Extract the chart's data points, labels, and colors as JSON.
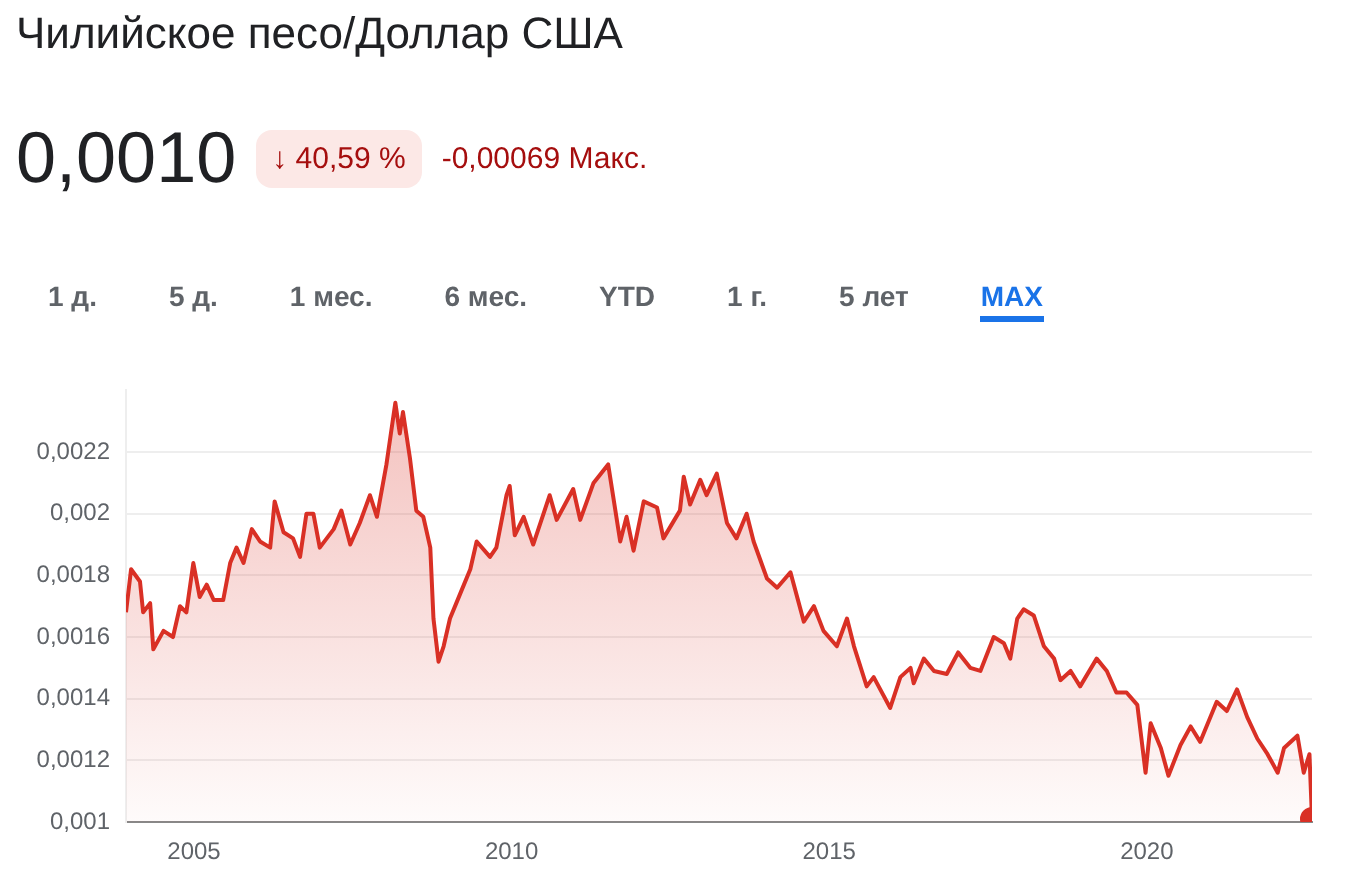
{
  "chart_data": {
    "type": "area",
    "title": "Чилийское песо/Доллар США",
    "annotations": [
      "0,0010",
      "↓ 40,59 %",
      "-0,00069 Макс.",
      "1 д.",
      "5 д.",
      "1 мес.",
      "6 мес.",
      "YTD",
      "1 г.",
      "5 лет",
      "MAX"
    ],
    "x": [
      2003.93,
      2004.01,
      2004.15,
      2004.2,
      2004.31,
      2004.36,
      2004.52,
      2004.67,
      2004.78,
      2004.88,
      2004.99,
      2005.09,
      2005.2,
      2005.31,
      2005.46,
      2005.57,
      2005.67,
      2005.78,
      2005.91,
      2006.04,
      2006.2,
      2006.27,
      2006.41,
      2006.56,
      2006.67,
      2006.77,
      2006.88,
      2006.98,
      2007.2,
      2007.32,
      2007.46,
      2007.61,
      2007.77,
      2007.88,
      2008.03,
      2008.17,
      2008.24,
      2008.29,
      2008.4,
      2008.5,
      2008.61,
      2008.72,
      2008.77,
      2008.85,
      2008.93,
      2009.03,
      2009.19,
      2009.35,
      2009.45,
      2009.66,
      2009.76,
      2009.92,
      2009.97,
      2010.05,
      2010.19,
      2010.34,
      2010.6,
      2010.71,
      2010.97,
      2011.08,
      2011.29,
      2011.52,
      2011.71,
      2011.81,
      2011.92,
      2012.08,
      2012.29,
      2012.39,
      2012.65,
      2012.71,
      2012.81,
      2012.97,
      2013.07,
      2013.23,
      2013.39,
      2013.54,
      2013.7,
      2013.81,
      2014.02,
      2014.18,
      2014.39,
      2014.6,
      2014.76,
      2014.91,
      2015.12,
      2015.28,
      2015.39,
      2015.59,
      2015.7,
      2015.96,
      2016.12,
      2016.28,
      2016.33,
      2016.49,
      2016.65,
      2016.85,
      2017.03,
      2017.22,
      2017.38,
      2017.59,
      2017.75,
      2017.85,
      2017.96,
      2018.06,
      2018.22,
      2018.38,
      2018.54,
      2018.64,
      2018.8,
      2018.95,
      2019.21,
      2019.37,
      2019.52,
      2019.68,
      2019.85,
      2019.98,
      2020.06,
      2020.22,
      2020.34,
      2020.53,
      2020.69,
      2020.84,
      2021.1,
      2021.26,
      2021.42,
      2021.58,
      2021.74,
      2021.9,
      2022.06,
      2022.16,
      2022.37,
      2022.47,
      2022.56,
      2022.6
    ],
    "values": [
      0.00168,
      0.00182,
      0.00178,
      0.00168,
      0.00171,
      0.00156,
      0.00162,
      0.0016,
      0.0017,
      0.00168,
      0.00184,
      0.00173,
      0.00177,
      0.00172,
      0.00172,
      0.00184,
      0.00189,
      0.00184,
      0.00195,
      0.00191,
      0.00189,
      0.00204,
      0.00194,
      0.00192,
      0.00186,
      0.002,
      0.002,
      0.00189,
      0.00195,
      0.00201,
      0.0019,
      0.00197,
      0.00206,
      0.00199,
      0.00216,
      0.00236,
      0.00226,
      0.00233,
      0.00218,
      0.00201,
      0.00199,
      0.00189,
      0.00166,
      0.00152,
      0.00157,
      0.00166,
      0.00174,
      0.00182,
      0.00191,
      0.00186,
      0.00189,
      0.00206,
      0.00209,
      0.00193,
      0.00199,
      0.0019,
      0.00206,
      0.00198,
      0.00208,
      0.00198,
      0.0021,
      0.00216,
      0.00191,
      0.00199,
      0.00188,
      0.00204,
      0.00202,
      0.00192,
      0.00201,
      0.00212,
      0.00203,
      0.00211,
      0.00206,
      0.00213,
      0.00197,
      0.00192,
      0.002,
      0.00191,
      0.00179,
      0.00176,
      0.00181,
      0.00165,
      0.0017,
      0.00162,
      0.00157,
      0.00166,
      0.00157,
      0.00144,
      0.00147,
      0.00137,
      0.00147,
      0.0015,
      0.00145,
      0.00153,
      0.00149,
      0.00148,
      0.00155,
      0.0015,
      0.00149,
      0.0016,
      0.00158,
      0.00153,
      0.00166,
      0.00169,
      0.00167,
      0.00157,
      0.00153,
      0.00146,
      0.00149,
      0.00144,
      0.00153,
      0.00149,
      0.00142,
      0.00142,
      0.00138,
      0.00116,
      0.00132,
      0.00124,
      0.00115,
      0.00125,
      0.00131,
      0.00126,
      0.00139,
      0.00136,
      0.00143,
      0.00134,
      0.00127,
      0.00122,
      0.00116,
      0.00124,
      0.00128,
      0.00116,
      0.00122,
      0.00101
    ],
    "color": "#d93025",
    "xlim": [
      2003.93,
      2022.6
    ],
    "xticks": [
      2005,
      2010,
      2015,
      2020
    ],
    "ylim": [
      0.001,
      0.0024
    ],
    "yticks": [
      {
        "value": 0.001,
        "label": "0,001"
      },
      {
        "value": 0.0012,
        "label": "0,0012"
      },
      {
        "value": 0.0014,
        "label": "0,0014"
      },
      {
        "value": 0.0016,
        "label": "0,0016"
      },
      {
        "value": 0.0018,
        "label": "0,0018"
      },
      {
        "value": 0.002,
        "label": "0,002"
      },
      {
        "value": 0.0022,
        "label": "0,0022"
      }
    ],
    "grid": "y"
  }
}
